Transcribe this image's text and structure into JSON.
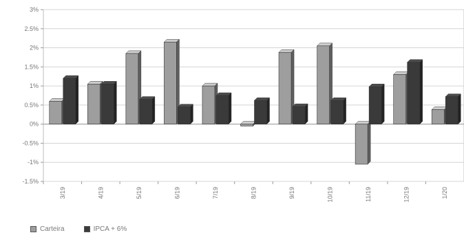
{
  "chart_data": {
    "type": "bar",
    "categories": [
      "3/19",
      "4/19",
      "5/19",
      "6/19",
      "7/19",
      "8/19",
      "9/19",
      "10/19",
      "11/19",
      "12/19",
      "1/20"
    ],
    "series": [
      {
        "name": "Carteira",
        "color": "#9e9e9e",
        "values": [
          0.6,
          1.05,
          1.85,
          2.15,
          1.0,
          -0.05,
          1.88,
          2.05,
          -1.05,
          1.3,
          0.38
        ]
      },
      {
        "name": "IPCA + 6%",
        "color": "#3a3a3a",
        "values": [
          1.2,
          1.05,
          0.65,
          0.45,
          0.75,
          0.62,
          0.46,
          0.62,
          0.98,
          1.62,
          0.72
        ]
      }
    ],
    "yticks": [
      "3%",
      "2.5%",
      "2%",
      "1.5%",
      "1%",
      "0.5%",
      "0%",
      "-0.5%",
      "-1%",
      "-1.5%"
    ],
    "ylim": [
      -1.5,
      3
    ],
    "grid": true,
    "legend_position": "bottom-left",
    "title": "",
    "xlabel": "",
    "ylabel": ""
  }
}
